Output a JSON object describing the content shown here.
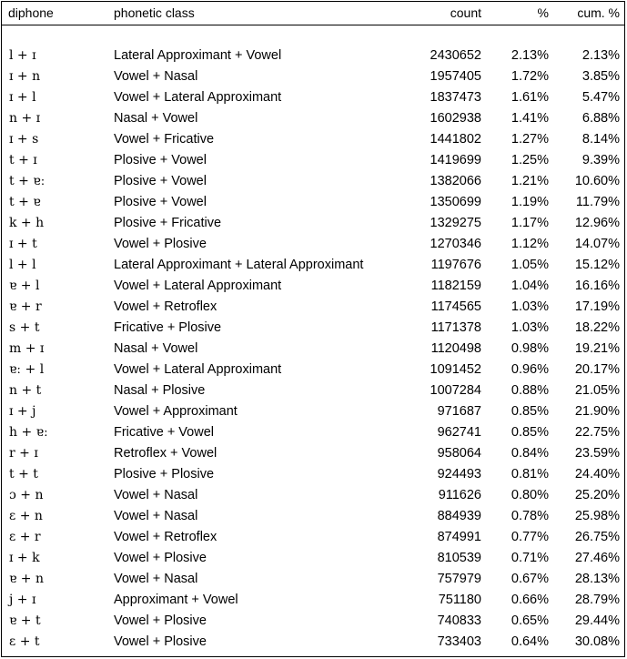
{
  "headers": {
    "diphone": "diphone",
    "phonetic_class": "phonetic class",
    "count": "count",
    "pct": "%",
    "cum_pct": "cum. %"
  },
  "rows": [
    {
      "diphone": "l + ɪ",
      "class": "Lateral Approximant + Vowel",
      "count": "2430652",
      "pct": "2.13%",
      "cum": "2.13%"
    },
    {
      "diphone": "ɪ + n",
      "class": "Vowel + Nasal",
      "count": "1957405",
      "pct": "1.72%",
      "cum": "3.85%"
    },
    {
      "diphone": "ɪ + l",
      "class": "Vowel + Lateral Approximant",
      "count": "1837473",
      "pct": "1.61%",
      "cum": "5.47%"
    },
    {
      "diphone": "n + ɪ",
      "class": "Nasal + Vowel",
      "count": "1602938",
      "pct": "1.41%",
      "cum": "6.88%"
    },
    {
      "diphone": "ɪ + s",
      "class": "Vowel + Fricative",
      "count": "1441802",
      "pct": "1.27%",
      "cum": "8.14%"
    },
    {
      "diphone": "t + ɪ",
      "class": "Plosive + Vowel",
      "count": "1419699",
      "pct": "1.25%",
      "cum": "9.39%"
    },
    {
      "diphone": "t + ɐː",
      "class": "Plosive + Vowel",
      "count": "1382066",
      "pct": "1.21%",
      "cum": "10.60%"
    },
    {
      "diphone": "t + ɐ",
      "class": "Plosive + Vowel",
      "count": "1350699",
      "pct": "1.19%",
      "cum": "11.79%"
    },
    {
      "diphone": "k + h",
      "class": "Plosive + Fricative",
      "count": "1329275",
      "pct": "1.17%",
      "cum": "12.96%"
    },
    {
      "diphone": "ɪ + t",
      "class": "Vowel + Plosive",
      "count": "1270346",
      "pct": "1.12%",
      "cum": "14.07%"
    },
    {
      "diphone": "l + l",
      "class": "Lateral Approximant + Lateral Approximant",
      "count": "1197676",
      "pct": "1.05%",
      "cum": "15.12%"
    },
    {
      "diphone": "ɐ + l",
      "class": "Vowel + Lateral Approximant",
      "count": "1182159",
      "pct": "1.04%",
      "cum": "16.16%"
    },
    {
      "diphone": "ɐ + r",
      "class": "Vowel + Retroflex",
      "count": "1174565",
      "pct": "1.03%",
      "cum": "17.19%"
    },
    {
      "diphone": "s + t",
      "class": "Fricative + Plosive",
      "count": "1171378",
      "pct": "1.03%",
      "cum": "18.22%"
    },
    {
      "diphone": "m + ɪ",
      "class": "Nasal + Vowel",
      "count": "1120498",
      "pct": "0.98%",
      "cum": "19.21%"
    },
    {
      "diphone": "ɐː + l",
      "class": "Vowel + Lateral Approximant",
      "count": "1091452",
      "pct": "0.96%",
      "cum": "20.17%"
    },
    {
      "diphone": "n + t",
      "class": "Nasal + Plosive",
      "count": "1007284",
      "pct": "0.88%",
      "cum": "21.05%"
    },
    {
      "diphone": "ɪ + j",
      "class": "Vowel + Approximant",
      "count": "971687",
      "pct": "0.85%",
      "cum": "21.90%"
    },
    {
      "diphone": "h + ɐː",
      "class": "Fricative + Vowel",
      "count": "962741",
      "pct": "0.85%",
      "cum": "22.75%"
    },
    {
      "diphone": "r + ɪ",
      "class": "Retroflex + Vowel",
      "count": "958064",
      "pct": "0.84%",
      "cum": "23.59%"
    },
    {
      "diphone": "t + t",
      "class": "Plosive + Plosive",
      "count": "924493",
      "pct": "0.81%",
      "cum": "24.40%"
    },
    {
      "diphone": "ɔ + n",
      "class": "Vowel + Nasal",
      "count": "911626",
      "pct": "0.80%",
      "cum": "25.20%"
    },
    {
      "diphone": "ɛ + n",
      "class": "Vowel + Nasal",
      "count": "884939",
      "pct": "0.78%",
      "cum": "25.98%"
    },
    {
      "diphone": "ɛ + r",
      "class": "Vowel + Retroflex",
      "count": "874991",
      "pct": "0.77%",
      "cum": "26.75%"
    },
    {
      "diphone": "ɪ + k",
      "class": "Vowel + Plosive",
      "count": "810539",
      "pct": "0.71%",
      "cum": "27.46%"
    },
    {
      "diphone": "ɐ + n",
      "class": "Vowel + Nasal",
      "count": "757979",
      "pct": "0.67%",
      "cum": "28.13%"
    },
    {
      "diphone": "j + ɪ",
      "class": "Approximant + Vowel",
      "count": "751180",
      "pct": "0.66%",
      "cum": "28.79%"
    },
    {
      "diphone": "ɐ + t",
      "class": "Vowel + Plosive",
      "count": "740833",
      "pct": "0.65%",
      "cum": "29.44%"
    },
    {
      "diphone": "ɛ + t",
      "class": "Vowel + Plosive",
      "count": "733403",
      "pct": "0.64%",
      "cum": "30.08%"
    }
  ]
}
